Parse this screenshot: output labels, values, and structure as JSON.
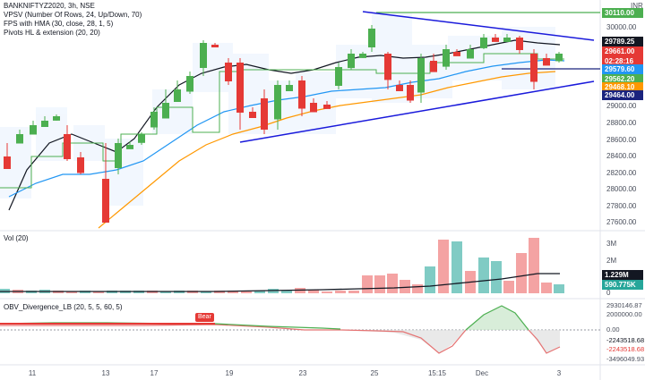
{
  "symbol_line": "BANKNIFTYZ2020, 3h, NSE",
  "indicators": [
    "VPSV (Number Of Rows, 24, Up/Down, 70)",
    "FPS with HMA (30, close, 28, 1, 5)",
    "Pivots HL & extension (20, 20)"
  ],
  "currency": "INR",
  "price_axis": {
    "ticks": [
      "30000.00",
      "29500.00",
      "29000.00",
      "28800.00",
      "28600.00",
      "28400.00",
      "28200.00",
      "28000.00",
      "27800.00",
      "27600.00"
    ],
    "tags": [
      {
        "text": "30110.00",
        "color": "#4caf50"
      },
      {
        "text": "29789.25",
        "color": "#131722"
      },
      {
        "text": "29661.00",
        "color": "#e53935"
      },
      {
        "text": "02:28:16",
        "color": "#e53935"
      },
      {
        "text": "29579.60",
        "color": "#2196f3"
      },
      {
        "text": "29562.20",
        "color": "#4caf50"
      },
      {
        "text": "29468.10",
        "color": "#ff9800"
      },
      {
        "text": "29464.00",
        "color": "#1a237e"
      }
    ]
  },
  "volume_pane": {
    "title": "Vol (20)",
    "ticks": [
      "3M",
      "2M",
      "1M",
      "0"
    ],
    "tags": [
      {
        "text": "1.229M",
        "color": "#131722"
      },
      {
        "text": "590.775K",
        "color": "#26a69a"
      }
    ]
  },
  "obv_pane": {
    "title": "OBV_Divergence_LB (20, 5, 5, 60, 5)",
    "badge": "Bear",
    "ticks": [
      "2930146.87",
      "2000000.00",
      "0.00",
      "-2243518.68",
      "-2243518.68",
      "-3496049.93"
    ]
  },
  "x_axis": [
    "11",
    "13",
    "17",
    "19",
    "23",
    "25",
    "15:15",
    "Dec",
    "3"
  ],
  "colors": {
    "up": "#4caf50",
    "down": "#e53935",
    "hma": "#2196f3",
    "fps": "#ff9800",
    "sma": "#131722",
    "trend": "#1a1adb"
  }
}
